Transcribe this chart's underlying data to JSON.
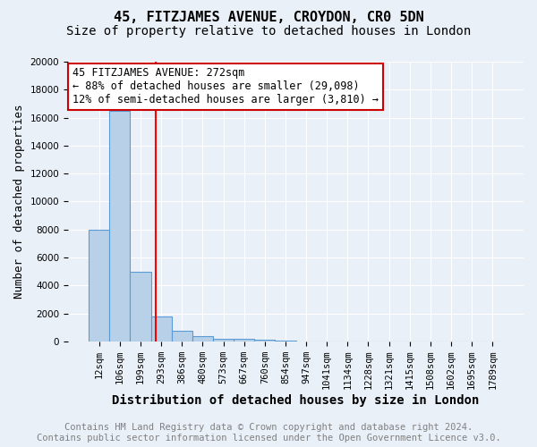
{
  "title": "45, FITZJAMES AVENUE, CROYDON, CR0 5DN",
  "subtitle": "Size of property relative to detached houses in London",
  "xlabel": "Distribution of detached houses by size in London",
  "ylabel": "Number of detached properties",
  "bin_labels": [
    "12sqm",
    "106sqm",
    "199sqm",
    "293sqm",
    "386sqm",
    "480sqm",
    "573sqm",
    "667sqm",
    "760sqm",
    "854sqm",
    "947sqm",
    "1041sqm",
    "1134sqm",
    "1228sqm",
    "1321sqm",
    "1415sqm",
    "1508sqm",
    "1602sqm",
    "1695sqm",
    "1789sqm"
  ],
  "bar_heights": [
    8000,
    16500,
    5000,
    1750,
    750,
    400,
    200,
    150,
    100,
    50,
    0,
    0,
    0,
    0,
    0,
    0,
    0,
    0,
    0,
    0
  ],
  "bar_color": "#b8d0e8",
  "bar_edge_color": "#5b9bd5",
  "red_line_bin": 2.72,
  "annotation_text": "45 FITZJAMES AVENUE: 272sqm\n← 88% of detached houses are smaller (29,098)\n12% of semi-detached houses are larger (3,810) →",
  "annotation_box_color": "#ffffff",
  "annotation_box_edge": "#cc0000",
  "ylim": [
    0,
    20000
  ],
  "yticks": [
    0,
    2000,
    4000,
    6000,
    8000,
    10000,
    12000,
    14000,
    16000,
    18000,
    20000
  ],
  "bg_color": "#eaf0f8",
  "footer_text": "Contains HM Land Registry data © Crown copyright and database right 2024.\nContains public sector information licensed under the Open Government Licence v3.0.",
  "title_fontsize": 11,
  "subtitle_fontsize": 10,
  "xlabel_fontsize": 10,
  "ylabel_fontsize": 9,
  "tick_fontsize": 7.5,
  "annotation_fontsize": 8.5,
  "footer_fontsize": 7.5
}
